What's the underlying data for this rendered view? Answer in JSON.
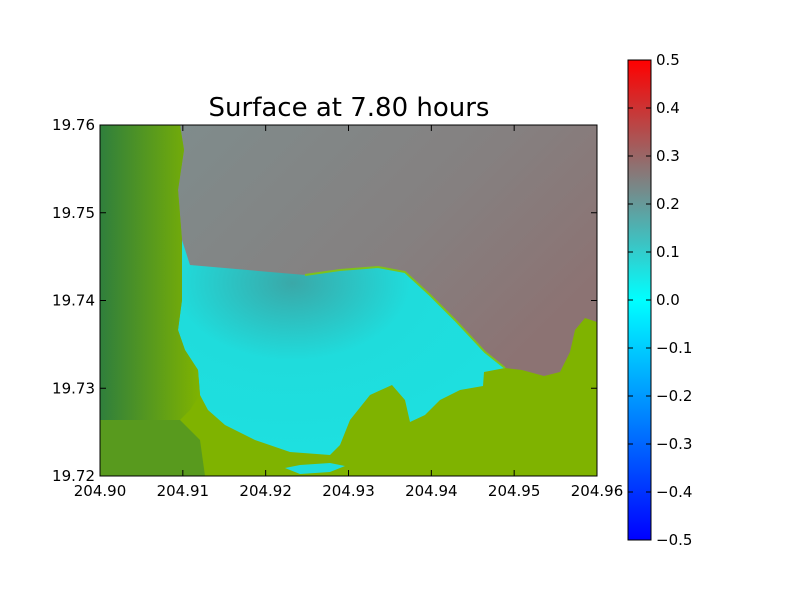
{
  "chart_data": {
    "type": "heatmap",
    "title": "Surface at 7.80 hours",
    "xlabel": "",
    "ylabel": "",
    "xlim": [
      204.9,
      204.96
    ],
    "ylim": [
      19.72,
      19.76
    ],
    "x_ticks": [
      "204.90",
      "204.91",
      "204.92",
      "204.93",
      "204.94",
      "204.95",
      "204.96"
    ],
    "y_ticks": [
      "19.76",
      "19.75",
      "19.74",
      "19.73",
      "19.72"
    ],
    "grid": false,
    "colorbar": {
      "range": [
        -0.5,
        0.5
      ],
      "ticks": [
        "0.5",
        "0.4",
        "0.3",
        "0.2",
        "0.1",
        "0.0",
        "−0.1",
        "−0.2",
        "−0.3",
        "−0.4",
        "−0.5"
      ],
      "colors": [
        "#0000ff",
        "#00ffff",
        "#808080",
        "#ff0000"
      ]
    },
    "regions": {
      "land_colors": [
        "#2f7f3c",
        "#7fb300"
      ],
      "shallow_water_color": "#1fdcdc",
      "offshore_colors": [
        "#7f8c8c",
        "#8c7373"
      ]
    }
  }
}
